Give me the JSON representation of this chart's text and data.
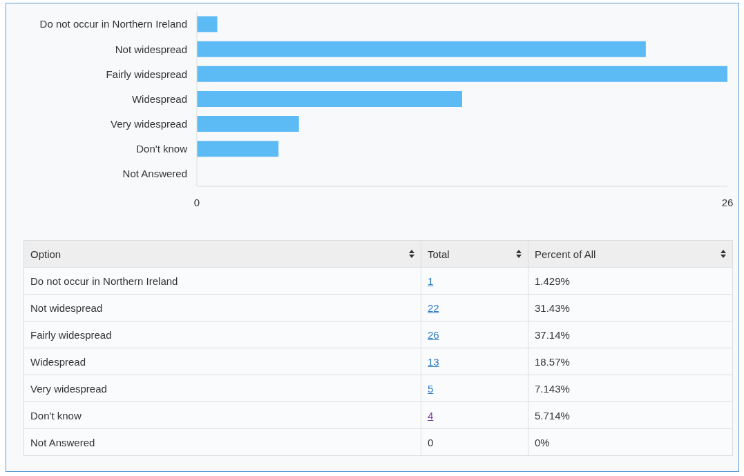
{
  "chart_data": [
    {
      "type": "bar",
      "orientation": "horizontal",
      "categories": [
        "Do not occur in Northern Ireland",
        "Not widespread",
        "Fairly widespread",
        "Widespread",
        "Very widespread",
        "Don't know",
        "Not Answered"
      ],
      "values": [
        1,
        22,
        26,
        13,
        5,
        4,
        0
      ],
      "color": "#5cbaf4",
      "xlim": [
        0,
        26
      ],
      "xticks": [
        0,
        26
      ]
    },
    {
      "type": "other",
      "annotations": [
        "Option",
        "Total",
        "Percent of All",
        "Do not occur in Northern Ireland",
        "1",
        "1.429%",
        "Not widespread",
        "22",
        "31.43%",
        "Fairly widespread",
        "26",
        "37.14%",
        "Widespread",
        "13",
        "18.57%",
        "Very widespread",
        "5",
        "7.143%",
        "Don't know",
        "4",
        "5.714%",
        "Not Answered",
        "0",
        "0%"
      ]
    }
  ]
}
